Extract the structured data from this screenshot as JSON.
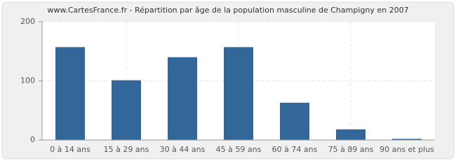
{
  "chart_data": {
    "type": "bar",
    "title": "www.CartesFrance.fr - Répartition par âge de la population masculine de Champigny en 2007",
    "categories": [
      "0 à 14 ans",
      "15 à 29 ans",
      "30 à 44 ans",
      "45 à 59 ans",
      "60 à 74 ans",
      "75 à 89 ans",
      "90 ans et plus"
    ],
    "values": [
      157,
      101,
      140,
      157,
      63,
      18,
      2
    ],
    "color": "#336699",
    "ylim": [
      0,
      200
    ],
    "yticks": [
      0,
      100,
      200
    ],
    "grid": true
  }
}
